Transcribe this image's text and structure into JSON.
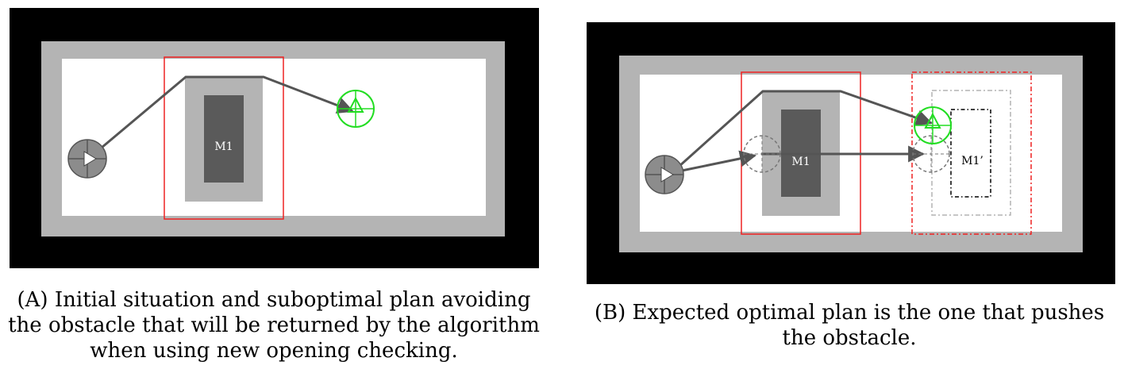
{
  "figure_a": {
    "obstacle_label": "M1",
    "caption_tag": "(A)",
    "caption_text": "Initial situation and suboptimal plan avoiding the obstacle that will be returned by the algorithm when using new opening checking."
  },
  "figure_b": {
    "obstacle_label": "M1",
    "moved_obstacle_label": "M1’",
    "caption_tag": "(B)",
    "caption_text": "Expected optimal plan is the one that pushes the obstacle."
  },
  "colors": {
    "wall": "#000000",
    "border": "#b4b4b4",
    "floor": "#ffffff",
    "obstacle": "#5a5a5a",
    "obstacle_margin": "#b4b4b4",
    "robot": "#8c8c8c",
    "path": "#555555",
    "goal": "#22dd22",
    "highlight": "#ee2222"
  },
  "icons": {
    "robot": "robot-start-icon",
    "goal": "goal-target-icon"
  }
}
